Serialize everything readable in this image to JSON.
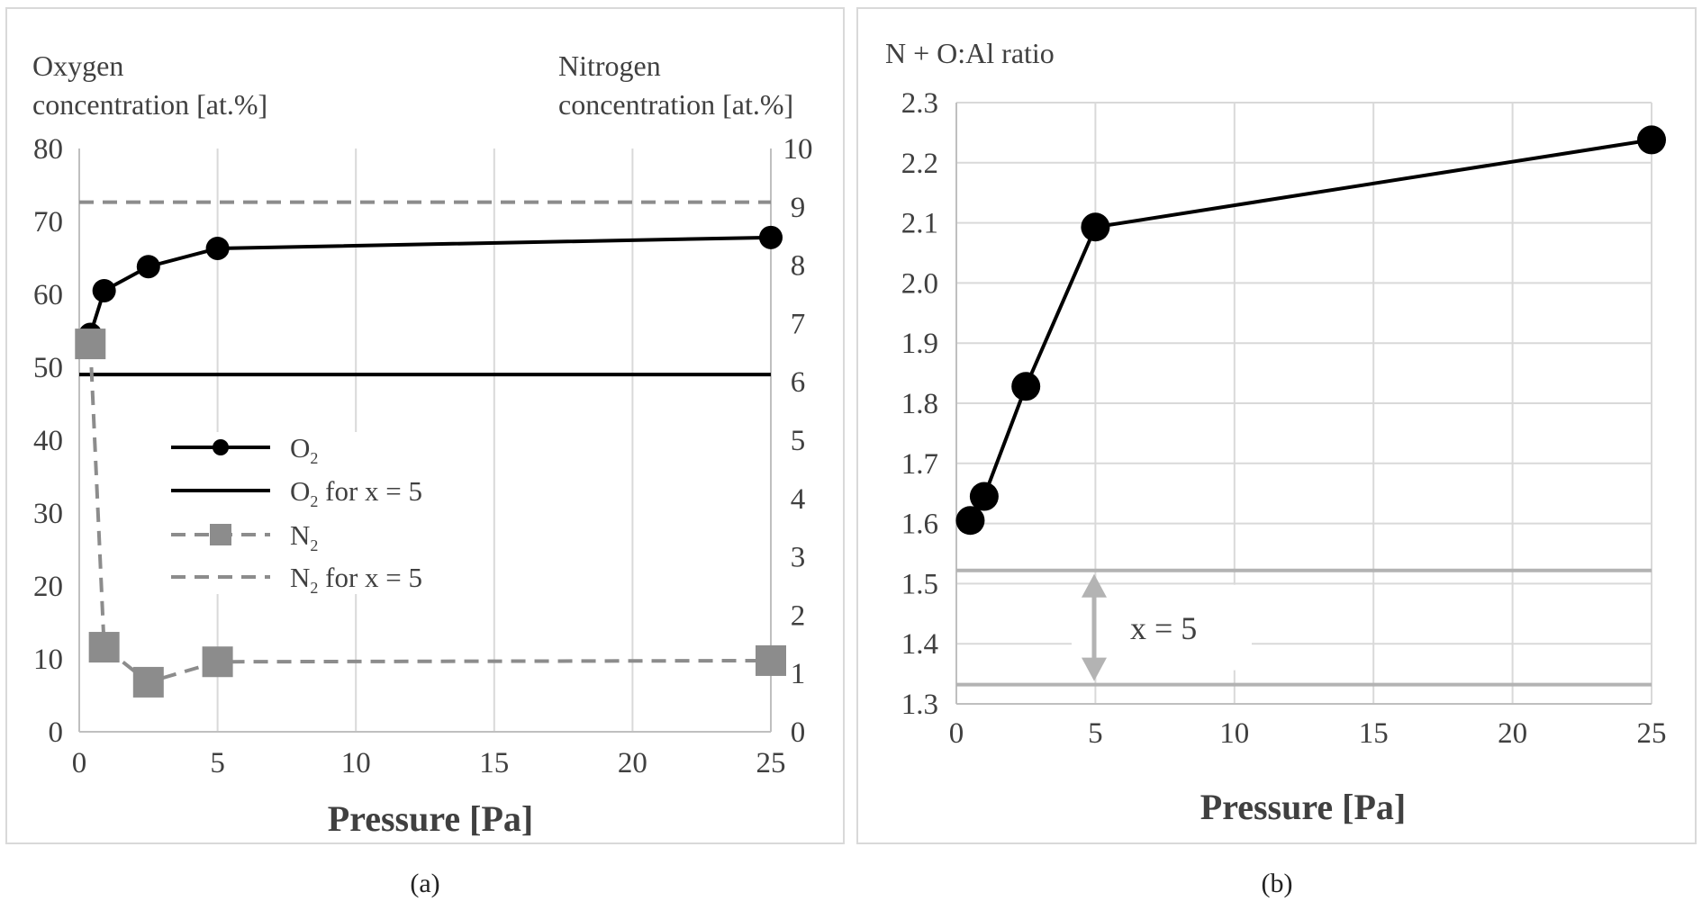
{
  "chart_data": [
    {
      "type": "line",
      "panel_label": "(a)",
      "title": "",
      "xlabel": "Pressure [Pa]",
      "ylabel_left": [
        "Oxygen",
        "concentration [at.%]"
      ],
      "ylabel_right": [
        "Nitrogen",
        "concentration [at.%]"
      ],
      "xlim": [
        0,
        25
      ],
      "ylim_left": [
        0,
        80
      ],
      "ylim_right": [
        0,
        10
      ],
      "x_ticks": [
        0,
        5,
        10,
        15,
        20,
        25
      ],
      "y_ticks_left": [
        0,
        10,
        20,
        30,
        40,
        50,
        60,
        70,
        80
      ],
      "y_ticks_right": [
        0,
        1,
        2,
        3,
        4,
        5,
        6,
        7,
        8,
        9,
        10
      ],
      "grid": "vertical",
      "legend_position": "center-left",
      "series": [
        {
          "name": "O2",
          "name_base": "O",
          "name_sub": "2",
          "name_suffix": "",
          "axis": "left",
          "style": "solid-marker-circle",
          "color": "#000000",
          "x": [
            0.4,
            0.9,
            2.5,
            5,
            25
          ],
          "y": [
            54.5,
            60.5,
            63.8,
            66.3,
            67.8
          ]
        },
        {
          "name": "O2 for x = 5",
          "name_base": "O",
          "name_sub": "2",
          "name_suffix": " for x = 5",
          "axis": "left",
          "style": "solid-reference",
          "color": "#000000",
          "x": [
            0,
            25
          ],
          "y": [
            49,
            49
          ]
        },
        {
          "name": "N2",
          "name_base": "N",
          "name_sub": "2",
          "name_suffix": "",
          "axis": "right",
          "style": "dashed-marker-square",
          "color": "#8c8c8c",
          "x": [
            0.4,
            0.9,
            2.5,
            5,
            25
          ],
          "y": [
            6.65,
            1.45,
            0.85,
            1.2,
            1.22
          ]
        },
        {
          "name": "N2 for x = 5",
          "name_base": "N",
          "name_sub": "2",
          "name_suffix": " for x = 5",
          "axis": "right",
          "style": "dashed-reference",
          "color": "#8c8c8c",
          "x": [
            0,
            25
          ],
          "y": [
            9.08,
            9.08
          ]
        }
      ]
    },
    {
      "type": "line",
      "panel_label": "(b)",
      "title": "",
      "ylabel": "N + O:Al ratio",
      "xlabel": "Pressure [Pa]",
      "xlim": [
        0,
        25
      ],
      "ylim": [
        1.3,
        2.3
      ],
      "x_ticks": [
        0,
        5,
        10,
        15,
        20,
        25
      ],
      "y_ticks": [
        "1.3",
        "1.4",
        "1.5",
        "1.6",
        "1.7",
        "1.8",
        "1.9",
        "2.0",
        "2.1",
        "2.2",
        "2.3"
      ],
      "grid": "both",
      "series": [
        {
          "name": "N + O:Al ratio",
          "style": "solid-marker-circle",
          "color": "#000000",
          "x": [
            0.5,
            1,
            2.5,
            5,
            25
          ],
          "y": [
            1.605,
            1.645,
            1.828,
            2.093,
            2.238
          ]
        }
      ],
      "reference_lines": [
        1.522,
        1.332
      ],
      "annotation": "x = 5"
    }
  ]
}
